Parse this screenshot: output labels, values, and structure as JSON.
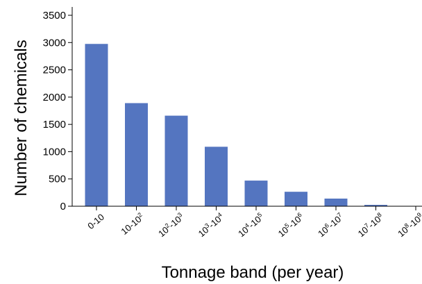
{
  "chart_data": {
    "type": "bar",
    "xlabel": "Tonnage band (per year)",
    "ylabel": "Number of chemicals",
    "ylim": [
      0,
      3500
    ],
    "yticks": [
      0,
      500,
      1000,
      1500,
      2000,
      2500,
      3000,
      3500
    ],
    "categories": [
      {
        "base": "0-10"
      },
      {
        "base": "10-10",
        "sup": "2"
      },
      {
        "base": "10",
        "sup": "2",
        "base2": "-10",
        "sup2": "3"
      },
      {
        "base": "10",
        "sup": "3",
        "base2": "-10",
        "sup2": "4"
      },
      {
        "base": "10",
        "sup": "4",
        "base2": "-10",
        "sup2": "5"
      },
      {
        "base": "10",
        "sup": "5",
        "base2": "-10",
        "sup2": "6"
      },
      {
        "base": "10",
        "sup": "6",
        "base2": "-10",
        "sup2": "7"
      },
      {
        "base": "10",
        "sup": "7",
        "base2": "-10",
        "sup2": "8"
      },
      {
        "base": "10",
        "sup": "8",
        "base2": "-10",
        "sup2": "9"
      }
    ],
    "values": [
      2975,
      1890,
      1660,
      1090,
      470,
      265,
      140,
      25,
      0
    ],
    "bar_color": "#5475c0",
    "grid": false,
    "legend": "none"
  }
}
